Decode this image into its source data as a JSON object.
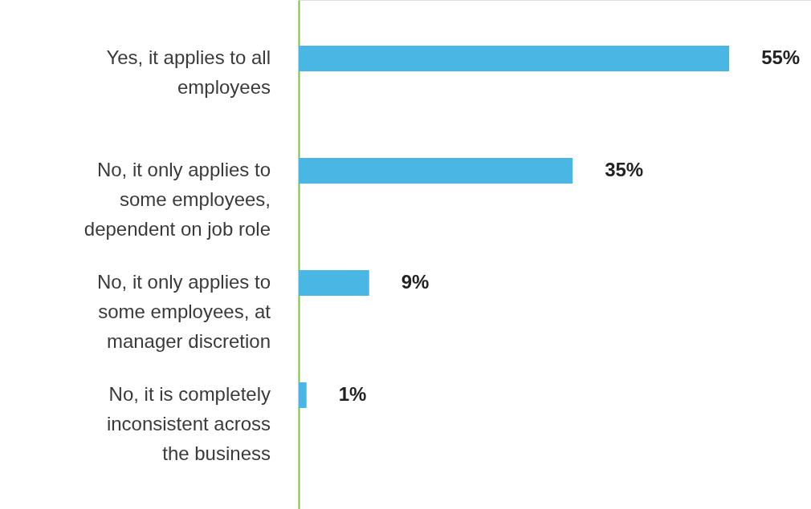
{
  "chart_data": {
    "type": "bar",
    "orientation": "horizontal",
    "categories": [
      "Yes, it applies to all employees",
      "No, it only applies to some employees, dependent on job role",
      "No, it only applies to some employees, at manager discretion",
      "No, it is completely inconsistent across the business"
    ],
    "values": [
      55,
      35,
      9,
      1
    ],
    "value_labels": [
      "55%",
      "35%",
      "9%",
      "1%"
    ],
    "color": "#4ab6e3"
  }
}
